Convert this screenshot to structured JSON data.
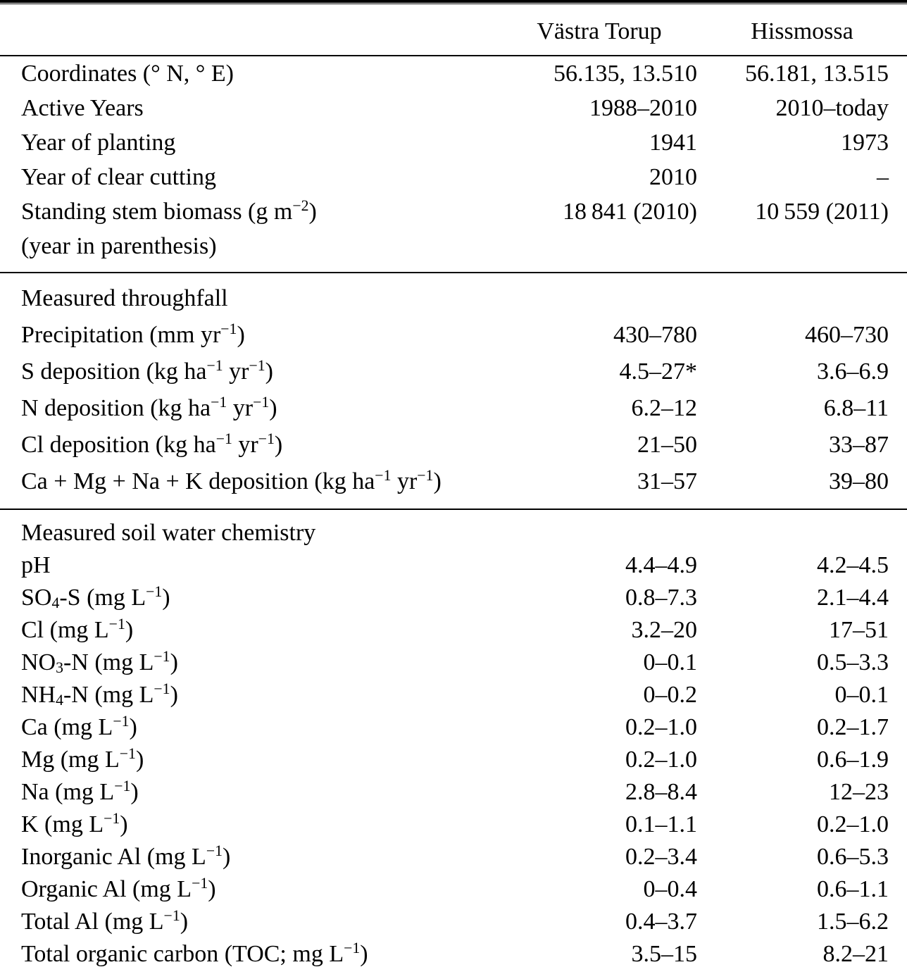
{
  "colors": {
    "text": "#000000",
    "background": "#ffffff",
    "rule": "#000000"
  },
  "table": {
    "header": {
      "label_col": "",
      "col1": "Västra Torup",
      "col2": "Hissmossa"
    },
    "sections": [
      {
        "title": "",
        "rows": [
          {
            "label": "Coordinates (° N, ° E)",
            "vastra_torup": "56.135, 13.510",
            "hissmossa": "56.181, 13.515"
          },
          {
            "label": "Active Years",
            "vastra_torup": "1988–2010",
            "hissmossa": "2010–today"
          },
          {
            "label": "Year of planting",
            "vastra_torup": "1941",
            "hissmossa": "1973"
          },
          {
            "label": "Year of clear cutting",
            "vastra_torup": "2010",
            "hissmossa": "–"
          },
          {
            "label": "Standing stem biomass (g m^{−2})",
            "label_line2": "(year in parenthesis)",
            "vastra_torup": "18 841 (2010)",
            "hissmossa": "10 559 (2011)"
          }
        ]
      },
      {
        "title": "Measured throughfall",
        "rows": [
          {
            "label": "Precipitation (mm yr^{−1})",
            "vastra_torup": "430–780",
            "hissmossa": "460–730"
          },
          {
            "label": "S deposition (kg ha^{−1} yr^{−1})",
            "vastra_torup": "4.5–27*",
            "hissmossa": "3.6–6.9"
          },
          {
            "label": "N deposition (kg ha^{−1} yr^{−1})",
            "vastra_torup": "6.2–12",
            "hissmossa": "6.8–11"
          },
          {
            "label": "Cl deposition (kg ha^{−1} yr^{−1})",
            "vastra_torup": "21–50",
            "hissmossa": "33–87"
          },
          {
            "label": "Ca + Mg + Na + K deposition (kg ha^{−1} yr^{−1})",
            "vastra_torup": "31–57",
            "hissmossa": "39–80"
          }
        ]
      },
      {
        "title": "Measured soil water chemistry",
        "rows": [
          {
            "label": "pH",
            "vastra_torup": "4.4–4.9",
            "hissmossa": "4.2–4.5"
          },
          {
            "label": "SO_{4}-S (mg L^{−1})",
            "vastra_torup": "0.8–7.3",
            "hissmossa": "2.1–4.4"
          },
          {
            "label": "Cl (mg L^{−1})",
            "vastra_torup": "3.2–20",
            "hissmossa": "17–51"
          },
          {
            "label": "NO_{3}-N (mg L^{−1})",
            "vastra_torup": "0–0.1",
            "hissmossa": "0.5–3.3"
          },
          {
            "label": "NH_{4}-N (mg L^{−1})",
            "vastra_torup": "0–0.2",
            "hissmossa": "0–0.1"
          },
          {
            "label": "Ca (mg L^{−1})",
            "vastra_torup": "0.2–1.0",
            "hissmossa": "0.2–1.7"
          },
          {
            "label": "Mg (mg L^{−1})",
            "vastra_torup": "0.2–1.0",
            "hissmossa": "0.6–1.9"
          },
          {
            "label": "Na (mg L^{−1})",
            "vastra_torup": "2.8–8.4",
            "hissmossa": "12–23"
          },
          {
            "label": "K (mg L^{−1})",
            "vastra_torup": "0.1–1.1",
            "hissmossa": "0.2–1.0"
          },
          {
            "label": "Inorganic Al (mg L^{−1})",
            "vastra_torup": "0.2–3.4",
            "hissmossa": "0.6–5.3"
          },
          {
            "label": "Organic Al (mg L^{−1})",
            "vastra_torup": "0–0.4",
            "hissmossa": "0.6–1.1"
          },
          {
            "label": "Total Al (mg L^{−1})",
            "vastra_torup": "0.4–3.7",
            "hissmossa": "1.5–6.2"
          },
          {
            "label": "Total organic carbon (TOC; mg L^{−1})",
            "vastra_torup": "3.5–15",
            "hissmossa": "8.2–21"
          }
        ]
      }
    ]
  }
}
